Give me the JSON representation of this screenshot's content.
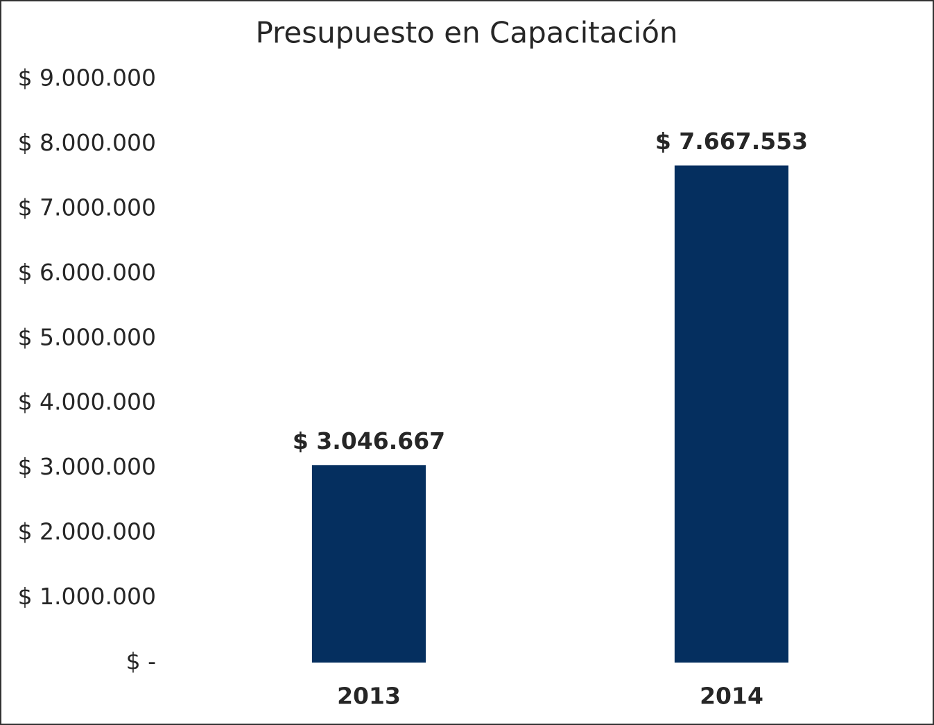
{
  "chart_data": {
    "type": "bar",
    "title": "Presupuesto en Capacitación",
    "categories": [
      "2013",
      "2014"
    ],
    "values": [
      3046667,
      7667553
    ],
    "value_labels": [
      "$ 3.046.667",
      "$ 7.667.553"
    ],
    "color": "#052f5f",
    "ylim": [
      0,
      9000000
    ],
    "yticks": [
      {
        "value": 0,
        "label": "$ -"
      },
      {
        "value": 1000000,
        "label": "$ 1.000.000"
      },
      {
        "value": 2000000,
        "label": "$ 2.000.000"
      },
      {
        "value": 3000000,
        "label": "$ 3.000.000"
      },
      {
        "value": 4000000,
        "label": "$ 4.000.000"
      },
      {
        "value": 5000000,
        "label": "$ 5.000.000"
      },
      {
        "value": 6000000,
        "label": "$ 6.000.000"
      },
      {
        "value": 7000000,
        "label": "$ 7.000.000"
      },
      {
        "value": 8000000,
        "label": "$ 8.000.000"
      },
      {
        "value": 9000000,
        "label": "$ 9.000.000"
      }
    ],
    "grid": false
  }
}
